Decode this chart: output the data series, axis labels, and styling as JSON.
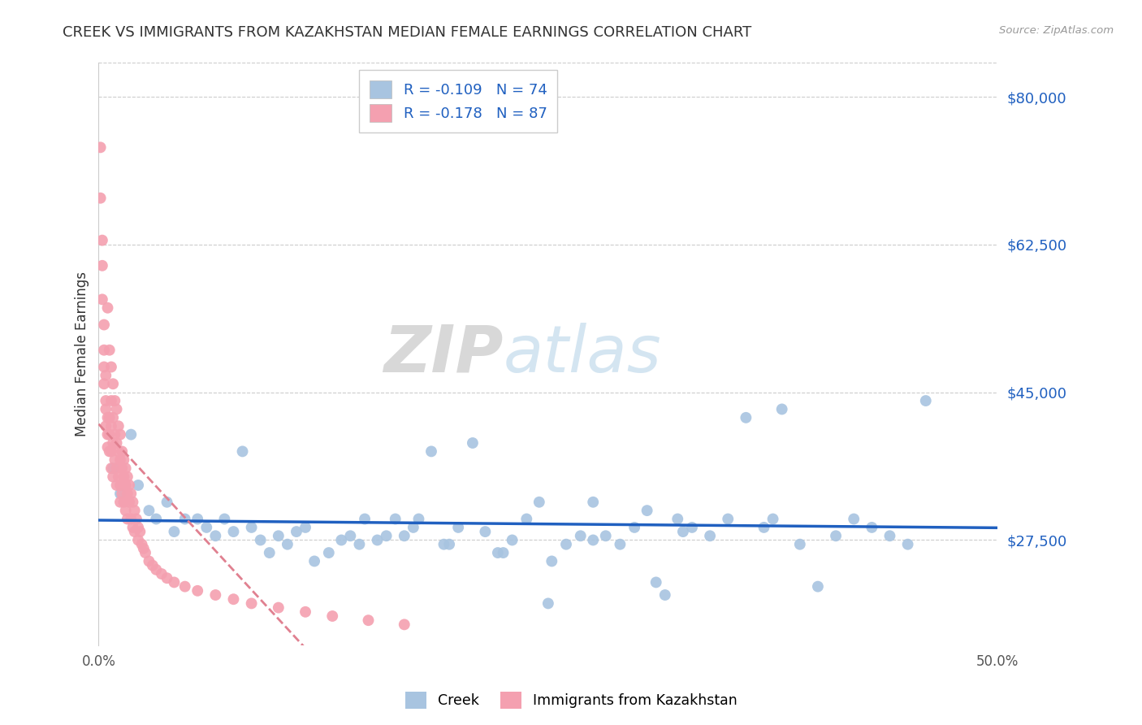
{
  "title": "CREEK VS IMMIGRANTS FROM KAZAKHSTAN MEDIAN FEMALE EARNINGS CORRELATION CHART",
  "source": "Source: ZipAtlas.com",
  "ylabel": "Median Female Earnings",
  "xlim": [
    0,
    0.5
  ],
  "ylim": [
    15000,
    84000
  ],
  "yticks": [
    27500,
    45000,
    62500,
    80000
  ],
  "ytick_labels": [
    "$27,500",
    "$45,000",
    "$62,500",
    "$80,000"
  ],
  "xticks": [
    0.0,
    0.1,
    0.2,
    0.3,
    0.4,
    0.5
  ],
  "xtick_labels": [
    "0.0%",
    "",
    "",
    "",
    "",
    "50.0%"
  ],
  "creek_color": "#a8c4e0",
  "kazakhstan_color": "#f4a0b0",
  "creek_line_color": "#2060c0",
  "kazakhstan_line_color": "#e08090",
  "legend_r_creek": "R = -0.109",
  "legend_n_creek": "N = 74",
  "legend_r_kaz": "R = -0.178",
  "legend_n_kaz": "N = 87",
  "grid_color": "#cccccc",
  "watermark_zip": "ZIP",
  "watermark_atlas": "atlas",
  "creek_x": [
    0.008,
    0.012,
    0.018,
    0.022,
    0.028,
    0.032,
    0.038,
    0.042,
    0.048,
    0.055,
    0.06,
    0.065,
    0.07,
    0.075,
    0.08,
    0.085,
    0.09,
    0.095,
    0.1,
    0.105,
    0.11,
    0.115,
    0.12,
    0.128,
    0.135,
    0.14,
    0.148,
    0.155,
    0.16,
    0.165,
    0.17,
    0.178,
    0.185,
    0.192,
    0.2,
    0.208,
    0.215,
    0.222,
    0.23,
    0.238,
    0.245,
    0.252,
    0.26,
    0.268,
    0.275,
    0.282,
    0.29,
    0.298,
    0.305,
    0.315,
    0.322,
    0.33,
    0.34,
    0.35,
    0.36,
    0.37,
    0.38,
    0.39,
    0.4,
    0.41,
    0.42,
    0.43,
    0.44,
    0.45,
    0.46,
    0.195,
    0.25,
    0.31,
    0.145,
    0.175,
    0.225,
    0.275,
    0.325,
    0.375
  ],
  "creek_y": [
    36000,
    33000,
    40000,
    34000,
    31000,
    30000,
    32000,
    28500,
    30000,
    30000,
    29000,
    28000,
    30000,
    28500,
    38000,
    29000,
    27500,
    26000,
    28000,
    27000,
    28500,
    29000,
    25000,
    26000,
    27500,
    28000,
    30000,
    27500,
    28000,
    30000,
    28000,
    30000,
    38000,
    27000,
    29000,
    39000,
    28500,
    26000,
    27500,
    30000,
    32000,
    25000,
    27000,
    28000,
    32000,
    28000,
    27000,
    29000,
    31000,
    21000,
    30000,
    29000,
    28000,
    30000,
    42000,
    29000,
    43000,
    27000,
    22000,
    28000,
    30000,
    29000,
    28000,
    27000,
    44000,
    27000,
    20000,
    22500,
    27000,
    29000,
    26000,
    27500,
    28500,
    30000
  ],
  "kaz_x": [
    0.001,
    0.001,
    0.002,
    0.002,
    0.002,
    0.003,
    0.003,
    0.003,
    0.003,
    0.004,
    0.004,
    0.004,
    0.004,
    0.005,
    0.005,
    0.005,
    0.005,
    0.006,
    0.006,
    0.006,
    0.006,
    0.007,
    0.007,
    0.007,
    0.007,
    0.007,
    0.008,
    0.008,
    0.008,
    0.008,
    0.009,
    0.009,
    0.009,
    0.01,
    0.01,
    0.01,
    0.01,
    0.011,
    0.011,
    0.011,
    0.012,
    0.012,
    0.012,
    0.012,
    0.013,
    0.013,
    0.013,
    0.014,
    0.014,
    0.014,
    0.015,
    0.015,
    0.015,
    0.016,
    0.016,
    0.016,
    0.017,
    0.017,
    0.018,
    0.018,
    0.019,
    0.019,
    0.02,
    0.02,
    0.021,
    0.022,
    0.022,
    0.023,
    0.024,
    0.025,
    0.026,
    0.028,
    0.03,
    0.032,
    0.035,
    0.038,
    0.042,
    0.048,
    0.055,
    0.065,
    0.075,
    0.085,
    0.1,
    0.115,
    0.13,
    0.15,
    0.17
  ],
  "kaz_y": [
    74000,
    68000,
    63000,
    60000,
    56000,
    53000,
    50000,
    48000,
    46000,
    44000,
    47000,
    43000,
    41000,
    55000,
    42000,
    40000,
    38500,
    50000,
    42000,
    40000,
    38000,
    48000,
    44000,
    41000,
    38000,
    36000,
    46000,
    42000,
    39000,
    35000,
    44000,
    40000,
    37000,
    43000,
    39000,
    36000,
    34000,
    41000,
    38000,
    35000,
    40000,
    37000,
    34000,
    32000,
    38000,
    36000,
    33000,
    37000,
    35000,
    32000,
    36000,
    34000,
    31000,
    35000,
    33000,
    30000,
    34000,
    32000,
    33000,
    30000,
    32000,
    29000,
    31000,
    28500,
    30000,
    29000,
    27500,
    28500,
    27000,
    26500,
    26000,
    25000,
    24500,
    24000,
    23500,
    23000,
    22500,
    22000,
    21500,
    21000,
    20500,
    20000,
    19500,
    19000,
    18500,
    18000,
    17500
  ]
}
